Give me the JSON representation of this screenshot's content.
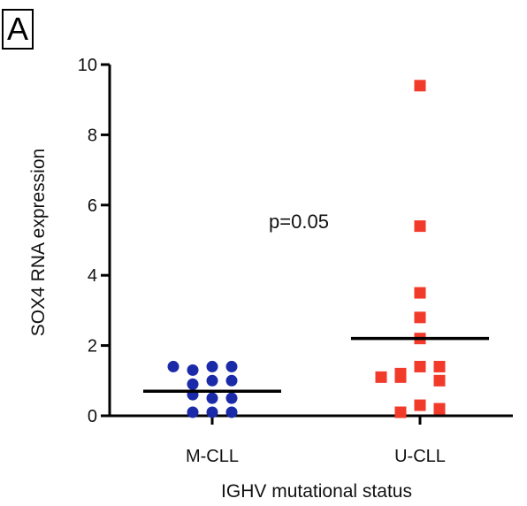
{
  "panel_label": "A",
  "colors": {
    "m_cll": "#1a2aa8",
    "u_cll": "#f23a2a",
    "axis": "#000000"
  },
  "chart_data": {
    "type": "scatter",
    "ylabel": "SOX4 RNA expression",
    "xlabel": "IGHV mutational status",
    "ylim": [
      0,
      10
    ],
    "yticks": [
      0,
      2,
      4,
      6,
      8,
      10
    ],
    "categories": [
      "M-CLL",
      "U-CLL"
    ],
    "annotation": "p=0.05",
    "series": [
      {
        "category": "M-CLL",
        "marker": "circle",
        "values": [
          1.4,
          1.3,
          1.4,
          1.4,
          1.0,
          0.9,
          1.0,
          0.5,
          0.6,
          0.5,
          0.1,
          0.1,
          0.1
        ],
        "mean": 0.7
      },
      {
        "category": "U-CLL",
        "marker": "square",
        "values": [
          9.4,
          5.4,
          3.5,
          2.8,
          2.2,
          1.4,
          1.2,
          1.1,
          1.0,
          1.1,
          1.4,
          0.3,
          0.1,
          0.2
        ],
        "mean": 2.2
      }
    ]
  }
}
